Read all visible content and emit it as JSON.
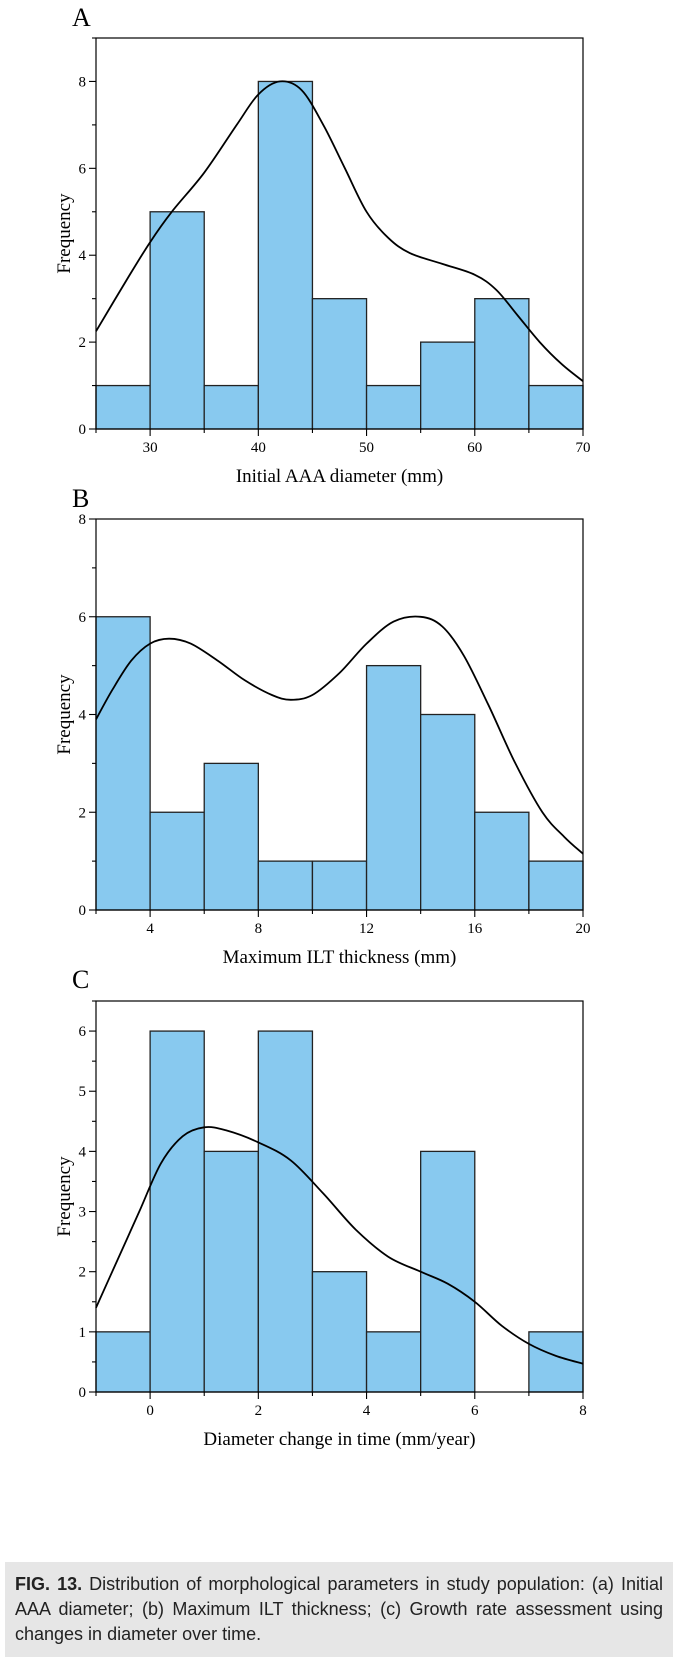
{
  "colors": {
    "bar_fill": "#88c9ef",
    "bar_stroke": "#222222",
    "curve": "#000000"
  },
  "chart_data": [
    {
      "panel_label": "A",
      "type": "bar",
      "subtype": "histogram",
      "xlabel": "Initial AAA diameter (mm)",
      "ylabel": "Frequency",
      "xlim": [
        25,
        70
      ],
      "ylim": [
        0,
        9
      ],
      "xticks": [
        30,
        40,
        50,
        60,
        70
      ],
      "yticks": [
        0,
        2,
        4,
        6,
        8
      ],
      "bins": [
        {
          "x0": 25,
          "x1": 30,
          "value": 1
        },
        {
          "x0": 30,
          "x1": 35,
          "value": 5
        },
        {
          "x0": 35,
          "x1": 40,
          "value": 1
        },
        {
          "x0": 40,
          "x1": 45,
          "value": 8
        },
        {
          "x0": 45,
          "x1": 50,
          "value": 3
        },
        {
          "x0": 50,
          "x1": 55,
          "value": 1
        },
        {
          "x0": 55,
          "x1": 60,
          "value": 2
        },
        {
          "x0": 60,
          "x1": 65,
          "value": 3
        },
        {
          "x0": 65,
          "x1": 70,
          "value": 1
        }
      ],
      "density_curve": [
        [
          25,
          2.25
        ],
        [
          28,
          3.5
        ],
        [
          30,
          4.3
        ],
        [
          32,
          5.0
        ],
        [
          35,
          5.9
        ],
        [
          38,
          7.0
        ],
        [
          40,
          7.7
        ],
        [
          42,
          8.0
        ],
        [
          44,
          7.8
        ],
        [
          46,
          7.0
        ],
        [
          48,
          6.0
        ],
        [
          50,
          5.0
        ],
        [
          52,
          4.4
        ],
        [
          54,
          4.05
        ],
        [
          57,
          3.8
        ],
        [
          60,
          3.55
        ],
        [
          62,
          3.2
        ],
        [
          64,
          2.6
        ],
        [
          66,
          2.0
        ],
        [
          68,
          1.5
        ],
        [
          70,
          1.1
        ]
      ]
    },
    {
      "panel_label": "B",
      "type": "bar",
      "subtype": "histogram",
      "xlabel": "Maximum ILT thickness (mm)",
      "ylabel": "Frequency",
      "xlim": [
        2,
        20
      ],
      "ylim": [
        0,
        8
      ],
      "xticks": [
        4,
        8,
        12,
        16,
        20
      ],
      "yticks": [
        0,
        2,
        4,
        6,
        8
      ],
      "bins": [
        {
          "x0": 2,
          "x1": 4,
          "value": 6
        },
        {
          "x0": 4,
          "x1": 6,
          "value": 2
        },
        {
          "x0": 6,
          "x1": 8,
          "value": 3
        },
        {
          "x0": 8,
          "x1": 10,
          "value": 1
        },
        {
          "x0": 10,
          "x1": 12,
          "value": 1
        },
        {
          "x0": 12,
          "x1": 14,
          "value": 5
        },
        {
          "x0": 14,
          "x1": 16,
          "value": 4
        },
        {
          "x0": 16,
          "x1": 18,
          "value": 2
        },
        {
          "x0": 18,
          "x1": 20,
          "value": 1
        }
      ],
      "density_curve": [
        [
          2,
          3.9
        ],
        [
          2.6,
          4.5
        ],
        [
          3.3,
          5.1
        ],
        [
          4,
          5.45
        ],
        [
          4.7,
          5.55
        ],
        [
          5.5,
          5.45
        ],
        [
          6.5,
          5.1
        ],
        [
          7.5,
          4.7
        ],
        [
          8.5,
          4.4
        ],
        [
          9.2,
          4.3
        ],
        [
          10,
          4.4
        ],
        [
          11,
          4.85
        ],
        [
          12,
          5.45
        ],
        [
          13,
          5.9
        ],
        [
          14,
          6.0
        ],
        [
          14.8,
          5.8
        ],
        [
          15.6,
          5.2
        ],
        [
          16.5,
          4.2
        ],
        [
          17.5,
          3.0
        ],
        [
          18.5,
          2.0
        ],
        [
          19.3,
          1.5
        ],
        [
          20,
          1.15
        ]
      ]
    },
    {
      "panel_label": "C",
      "type": "bar",
      "subtype": "histogram",
      "xlabel": "Diameter change in time (mm/year)",
      "ylabel": "Frequency",
      "xlim": [
        -1,
        8
      ],
      "ylim": [
        0,
        6.5
      ],
      "xticks": [
        0,
        2,
        4,
        6,
        8
      ],
      "yticks": [
        0,
        1,
        2,
        3,
        4,
        5,
        6
      ],
      "bins": [
        {
          "x0": -1,
          "x1": 0,
          "value": 1
        },
        {
          "x0": 0,
          "x1": 1,
          "value": 6
        },
        {
          "x0": 1,
          "x1": 2,
          "value": 4
        },
        {
          "x0": 2,
          "x1": 3,
          "value": 6
        },
        {
          "x0": 3,
          "x1": 4,
          "value": 2
        },
        {
          "x0": 4,
          "x1": 5,
          "value": 1
        },
        {
          "x0": 5,
          "x1": 6,
          "value": 4
        },
        {
          "x0": 6,
          "x1": 7,
          "value": 0
        },
        {
          "x0": 7,
          "x1": 8,
          "value": 1
        }
      ],
      "density_curve": [
        [
          -1,
          1.4
        ],
        [
          -0.6,
          2.2
        ],
        [
          -0.2,
          3.0
        ],
        [
          0.2,
          3.8
        ],
        [
          0.6,
          4.25
        ],
        [
          1.0,
          4.4
        ],
        [
          1.4,
          4.35
        ],
        [
          2.0,
          4.15
        ],
        [
          2.6,
          3.85
        ],
        [
          3.2,
          3.3
        ],
        [
          3.8,
          2.7
        ],
        [
          4.4,
          2.25
        ],
        [
          5.0,
          2.0
        ],
        [
          5.5,
          1.8
        ],
        [
          6.0,
          1.5
        ],
        [
          6.5,
          1.1
        ],
        [
          7.0,
          0.8
        ],
        [
          7.5,
          0.6
        ],
        [
          8.0,
          0.47
        ]
      ]
    }
  ],
  "caption": {
    "label": "FIG. 13.",
    "text": " Distribution of morphological parameters in study population: (a) Initial AAA diameter; (b) Maximum ILT thickness; (c) Growth rate assessment using changes in diameter over time."
  }
}
